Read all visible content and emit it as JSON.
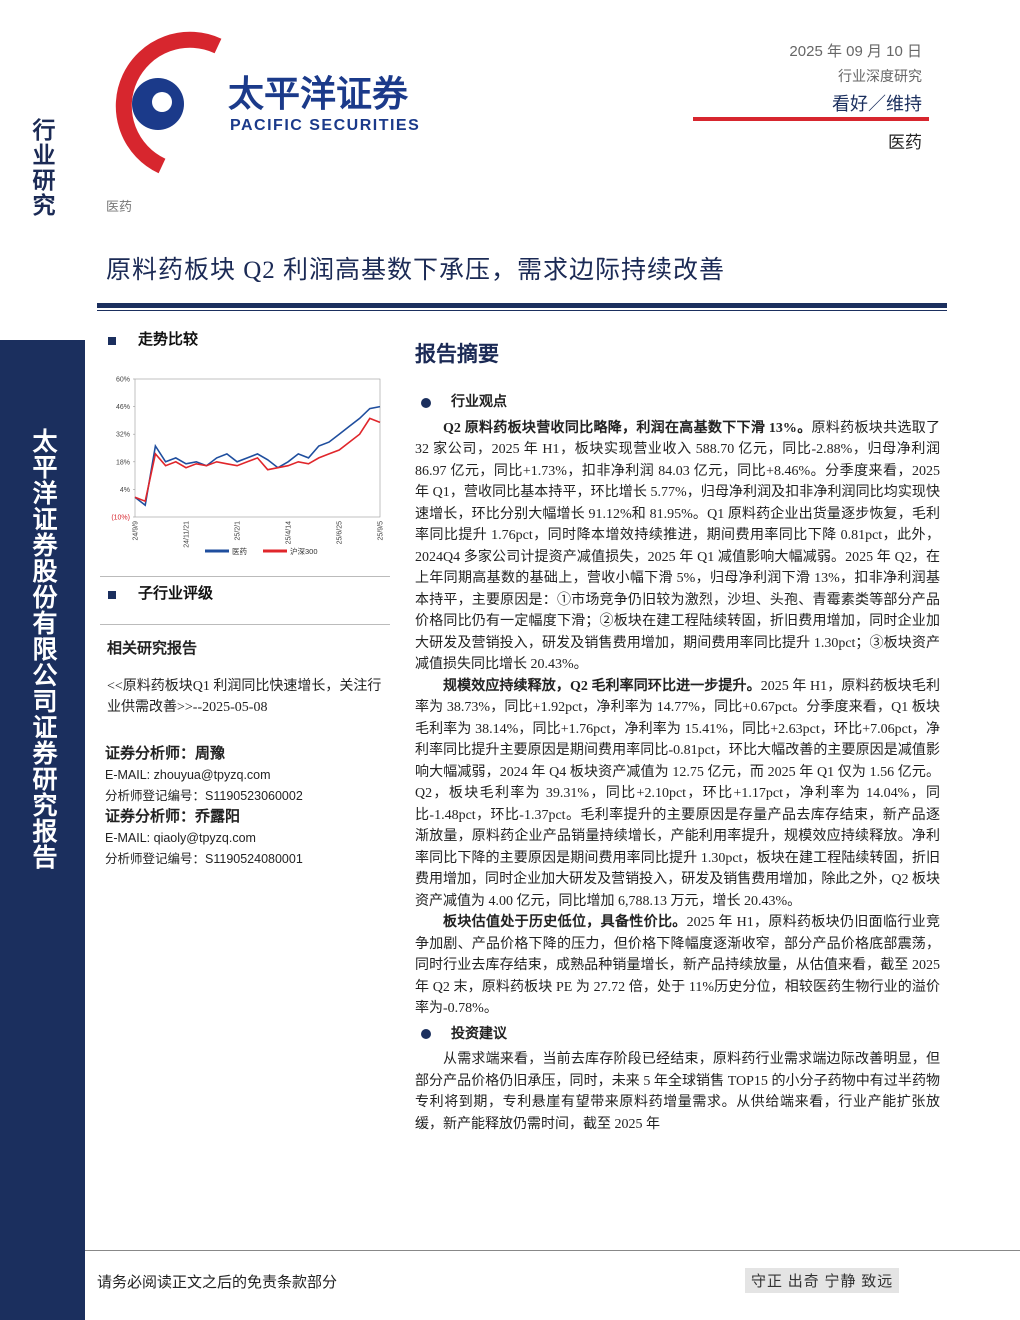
{
  "sidebar": {
    "top": "行业研究",
    "band": "太平洋证券股份有限公司证券研究报告"
  },
  "header": {
    "logo_cn": "太平洋证券",
    "logo_en": "PACIFIC SECURITIES",
    "date": "2025 年 09 月 10 日",
    "report_type": "行业深度研究",
    "rating": "看好／维持",
    "industry": "医药",
    "small_industry": "医药",
    "title": "原料药板块 Q2 利润高基数下承压，需求边际持续改善"
  },
  "left": {
    "trend_heading": "走势比较",
    "subindustry_heading": "子行业评级",
    "related_heading": "相关研究报告",
    "related_report": "<<原料药板块Q1 利润同比快速增长，关注行业供需改善>>--2025-05-08",
    "analysts": [
      {
        "name": "证券分析师：周豫",
        "email": "E-MAIL: zhouyua@tpyzq.com",
        "reg": "分析师登记编号：S1190523060002"
      },
      {
        "name": "证券分析师：乔露阳",
        "email": "E-MAIL: qiaoly@tpyzq.com",
        "reg": "分析师登记编号：S1190524080001"
      }
    ]
  },
  "chart_data": {
    "type": "line",
    "categories": [
      "24/9/9",
      null,
      null,
      null,
      null,
      "24/11/21",
      null,
      null,
      null,
      null,
      "25/2/1",
      null,
      null,
      null,
      null,
      "25/4/14",
      null,
      null,
      null,
      null,
      "25/6/25",
      null,
      null,
      null,
      "25/9/5"
    ],
    "series": [
      {
        "name": "医药",
        "color": "#1f4e9e",
        "values": [
          0,
          -4,
          26,
          18,
          20,
          17,
          18,
          16,
          20,
          22,
          18,
          20,
          22,
          19,
          15,
          18,
          22,
          20,
          26,
          28,
          32,
          36,
          40,
          45,
          46
        ]
      },
      {
        "name": "沪深300",
        "color": "#e0262b",
        "values": [
          0,
          -2,
          22,
          16,
          18,
          15,
          17,
          16,
          18,
          17,
          16,
          18,
          20,
          14,
          15,
          16,
          18,
          17,
          20,
          22,
          24,
          28,
          32,
          40,
          38
        ]
      }
    ],
    "ylim": [
      -10,
      60
    ],
    "yticks": [
      {
        "value": 60,
        "label": "60%"
      },
      {
        "value": 46,
        "label": "46%"
      },
      {
        "value": 32,
        "label": "32%"
      },
      {
        "value": 18,
        "label": "18%"
      },
      {
        "value": 4,
        "label": "4%"
      },
      {
        "value": -10,
        "label": "(10%)"
      }
    ]
  },
  "report": {
    "heading": "报告摘要",
    "view_heading": "行业观点",
    "paragraphs": [
      {
        "lead": "Q2 原料药板块营收同比略降，利润在高基数下下滑 13%。",
        "body": "原料药板块共选取了 32 家公司，2025 年 H1，板块实现营业收入 588.70 亿元，同比-2.88%，归母净利润 86.97 亿元，同比+1.73%，扣非净利润 84.03 亿元，同比+8.46%。分季度来看，2025 年 Q1，营收同比基本持平，环比增长 5.77%，归母净利润及扣非净利润同比均实现快速增长，环比分别大幅增长 91.12%和 81.95%。Q1 原料药企业出货量逐步恢复，毛利率同比提升 1.76pct，同时降本增效持续推进，期间费用率同比下降 0.81pct，此外，2024Q4 多家公司计提资产减值损失，2025 年 Q1 减值影响大幅减弱。2025 年 Q2，在上年同期高基数的基础上，营收小幅下滑 5%，归母净利润下滑 13%，扣非净利润基本持平，主要原因是：①市场竞争仍旧较为激烈，沙坦、头孢、青霉素类等部分产品价格同比仍有一定幅度下滑；②板块在建工程陆续转固，折旧费用增加，同时企业加大研发及营销投入，研发及销售费用增加，期间费用率同比提升 1.30pct；③板块资产减值损失同比增长 20.43%。"
      },
      {
        "lead": "规模效应持续释放，Q2 毛利率同环比进一步提升。",
        "body": "2025 年 H1，原料药板块毛利率为 38.73%，同比+1.92pct，净利率为 14.77%，同比+0.67pct。分季度来看，Q1 板块毛利率为 38.14%，同比+1.76pct，净利率为 15.41%，同比+2.63pct，环比+7.06pct，净利率同比提升主要原因是期间费用率同比-0.81pct，环比大幅改善的主要原因是减值影响大幅减弱，2024 年 Q4 板块资产减值为 12.75 亿元，而 2025 年 Q1 仅为 1.56 亿元。Q2，板块毛利率为 39.31%，同比+2.10pct，环比+1.17pct，净利率为 14.04%，同比-1.48pct，环比-1.37pct。毛利率提升的主要原因是存量产品去库存结束，新产品逐渐放量，原料药企业产品销量持续增长，产能利用率提升，规模效应持续释放。净利率同比下降的主要原因是期间费用率同比提升 1.30pct，板块在建工程陆续转固，折旧费用增加，同时企业加大研发及营销投入，研发及销售费用增加，除此之外，Q2 板块资产减值为 4.00 亿元，同比增加 6,788.13 万元，增长 20.43%。"
      },
      {
        "lead": "板块估值处于历史低位，具备性价比。",
        "body": "2025 年 H1，原料药板块仍旧面临行业竞争加剧、产品价格下降的压力，但价格下降幅度逐渐收窄，部分产品价格底部震荡，同时行业去库存结束，成熟品种销量增长，新产品持续放量，从估值来看，截至 2025 年 Q2 末，原料药板块 PE 为 27.72 倍，处于 11%历史分位，相较医药生物行业的溢价率为-0.78%。"
      }
    ],
    "advice_heading": "投资建议",
    "advice": "从需求端来看，当前去库存阶段已经结束，原料药行业需求端边际改善明显，但部分产品价格仍旧承压，同时，未来 5 年全球销售 TOP15 的小分子药物中有过半药物专利将到期，专利悬崖有望带来原料药增量需求。从供给端来看，行业产能扩张放缓，新产能释放仍需时间，截至 2025 年"
  },
  "footer": {
    "disclaimer": "请务必阅读正文之后的免责条款部分",
    "motto": "守正 出奇 宁静 致远"
  }
}
